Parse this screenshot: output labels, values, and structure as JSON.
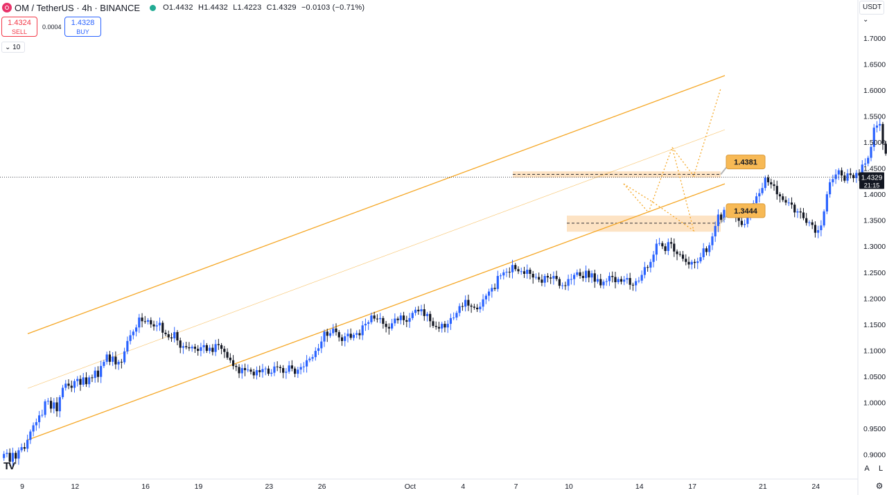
{
  "header": {
    "symbol": "OM / TetherUS · 4h · BINANCE",
    "open": "O1.4432",
    "high": "H1.4432",
    "low": "L1.4223",
    "close": "C1.4329",
    "change": "−0.0103 (−0.71%)"
  },
  "trade": {
    "sell_price": "1.4324",
    "sell_label": "SELL",
    "spread": "0.0004",
    "buy_price": "1.4328",
    "buy_label": "BUY",
    "lots": "10"
  },
  "currency": "USDT",
  "price_box": {
    "price": "1.4329",
    "countdown": "21:15"
  },
  "axis_buttons": {
    "auto": "A",
    "log": "L"
  },
  "chart_data": {
    "type": "candlestick",
    "title": "",
    "y_ticks": [
      "0.9000",
      "0.9500",
      "1.0000",
      "1.0500",
      "1.1000",
      "1.1500",
      "1.2000",
      "1.2500",
      "1.3000",
      "1.3500",
      "1.4000",
      "1.4500",
      "1.5000",
      "1.5500",
      "1.6000",
      "1.6500",
      "1.7000"
    ],
    "x_ticks": [
      "9",
      "12",
      "16",
      "19",
      "23",
      "26",
      "Oct",
      "4",
      "7",
      "10",
      "14",
      "17",
      "21",
      "24"
    ],
    "ylim": [
      0.875,
      1.7335
    ],
    "colors": {
      "up": "#2962ff",
      "down": "#131722",
      "channel": "#f5a623",
      "zone": "#fcd9b0",
      "label": "#f7b955"
    },
    "current_price": 1.4329,
    "zones": [
      {
        "label": "1.4381",
        "price": 1.4381,
        "top": 1.444,
        "bottom": 1.432
      },
      {
        "label": "1.3444",
        "price": 1.3444,
        "top": 1.359,
        "bottom": 1.328
      }
    ],
    "channel": {
      "upper": [
        [
          0,
          1.132
        ],
        [
          63.5,
          1.628
        ]
      ],
      "middle": [
        [
          0,
          1.027
        ],
        [
          63.5,
          1.524
        ]
      ],
      "lower": [
        [
          0,
          0.928
        ],
        [
          63.5,
          1.42
        ]
      ]
    },
    "projections": [
      [
        [
          54.3,
          1.42
        ],
        [
          56.6,
          1.365
        ],
        [
          58.8,
          1.49
        ],
        [
          60.8,
          1.435
        ],
        [
          63.3,
          1.603
        ]
      ],
      [
        [
          54.3,
          1.42
        ],
        [
          57.0,
          1.385
        ],
        [
          60.8,
          1.33
        ],
        [
          58.8,
          1.49
        ]
      ]
    ],
    "closes": [
      0.893,
      0.901,
      0.903,
      0.886,
      0.903,
      0.892,
      0.908,
      0.914,
      0.911,
      0.928,
      0.944,
      0.956,
      0.962,
      0.975,
      0.976,
      1.002,
      1.003,
      0.988,
      1.0,
      0.983,
      1.01,
      1.028,
      1.036,
      1.032,
      1.028,
      1.041,
      1.045,
      1.034,
      1.048,
      1.035,
      1.048,
      1.047,
      1.061,
      1.049,
      1.07,
      1.078,
      1.092,
      1.078,
      1.088,
      1.073,
      1.078,
      1.077,
      1.098,
      1.118,
      1.129,
      1.136,
      1.144,
      1.163,
      1.156,
      1.155,
      1.158,
      1.15,
      1.146,
      1.148,
      1.153,
      1.134,
      1.131,
      1.125,
      1.123,
      1.135,
      1.119,
      1.105,
      1.108,
      1.106,
      1.104,
      1.107,
      1.103,
      1.099,
      1.106,
      1.11,
      1.099,
      1.105,
      1.097,
      1.112,
      1.11,
      1.103,
      1.097,
      1.086,
      1.081,
      1.07,
      1.068,
      1.056,
      1.066,
      1.062,
      1.063,
      1.059,
      1.052,
      1.062,
      1.058,
      1.064,
      1.065,
      1.055,
      1.057,
      1.069,
      1.068,
      1.066,
      1.057,
      1.059,
      1.071,
      1.065,
      1.055,
      1.063,
      1.068,
      1.069,
      1.081,
      1.084,
      1.087,
      1.099,
      1.104,
      1.117,
      1.136,
      1.128,
      1.133,
      1.142,
      1.135,
      1.125,
      1.118,
      1.127,
      1.132,
      1.124,
      1.13,
      1.133,
      1.129,
      1.148,
      1.151,
      1.154,
      1.167,
      1.161,
      1.16,
      1.162,
      1.151,
      1.145,
      1.142,
      1.152,
      1.161,
      1.158,
      1.167,
      1.158,
      1.155,
      1.162,
      1.172,
      1.178,
      1.175,
      1.179,
      1.166,
      1.17,
      1.156,
      1.147,
      1.145,
      1.142,
      1.151,
      1.144,
      1.151,
      1.162,
      1.163,
      1.172,
      1.185,
      1.184,
      1.197,
      1.186,
      1.184,
      1.182,
      1.179,
      1.184,
      1.198,
      1.205,
      1.213,
      1.22,
      1.218,
      1.243,
      1.244,
      1.25,
      1.251,
      1.25,
      1.264,
      1.256,
      1.252,
      1.252,
      1.247,
      1.255,
      1.247,
      1.24,
      1.241,
      1.236,
      1.23,
      1.243,
      1.24,
      1.238,
      1.243,
      1.237,
      1.224,
      1.225,
      1.224,
      1.237,
      1.237,
      1.245,
      1.25,
      1.243,
      1.239,
      1.253,
      1.24,
      1.248,
      1.232,
      1.237,
      1.225,
      1.232,
      1.233,
      1.243,
      1.241,
      1.231,
      1.237,
      1.232,
      1.236,
      1.239,
      1.226,
      1.225,
      1.233,
      1.234,
      1.245,
      1.26,
      1.259,
      1.27,
      1.284,
      1.305,
      1.306,
      1.3,
      1.291,
      1.308,
      1.305,
      1.29,
      1.285,
      1.284,
      1.276,
      1.27,
      1.265,
      1.27,
      1.268,
      1.271,
      1.279,
      1.296,
      1.289,
      1.302,
      1.319,
      1.339,
      1.361,
      1.351,
      1.37,
      1.364,
      1.37,
      1.368,
      1.357,
      1.349,
      1.341,
      1.343,
      1.358,
      1.371,
      1.383,
      1.396,
      1.402,
      1.412,
      1.432,
      1.423,
      1.419,
      1.416,
      1.4,
      1.396,
      1.389,
      1.384,
      1.384,
      1.38,
      1.365,
      1.367,
      1.365,
      1.354,
      1.345,
      1.346,
      1.341,
      1.326,
      1.331,
      1.34,
      1.367,
      1.4,
      1.423,
      1.429,
      1.438,
      1.446,
      1.436,
      1.426,
      1.44,
      1.437,
      1.431,
      1.441,
      1.436,
      1.457,
      1.459,
      1.47,
      1.491,
      1.528,
      1.532,
      1.535,
      1.497,
      1.478,
      1.455,
      1.445,
      1.4432,
      1.4329
    ]
  }
}
